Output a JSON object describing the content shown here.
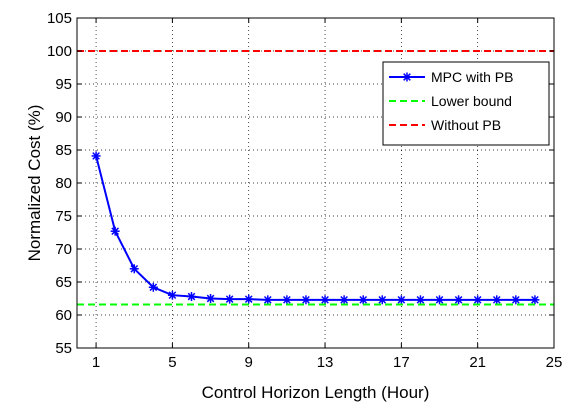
{
  "chart_data": {
    "type": "line",
    "title": "",
    "xlabel": "Control Horizon Length (Hour)",
    "ylabel": "Normalized Cost (%)",
    "xlim": [
      0,
      25
    ],
    "ylim": [
      55,
      105
    ],
    "xticks": [
      1,
      5,
      9,
      13,
      17,
      21,
      25
    ],
    "yticks": [
      55,
      60,
      65,
      70,
      75,
      80,
      85,
      90,
      95,
      100,
      105
    ],
    "grid": true,
    "legend_position": "top-right",
    "series": [
      {
        "name": "MPC with PB",
        "style": "solid line with asterisk markers",
        "color": "#0000ff",
        "x": [
          1,
          2,
          3,
          4,
          5,
          6,
          7,
          8,
          9,
          10,
          11,
          12,
          13,
          14,
          15,
          16,
          17,
          18,
          19,
          20,
          21,
          22,
          23,
          24
        ],
        "values": [
          84.1,
          72.7,
          67.0,
          64.2,
          63.0,
          62.8,
          62.5,
          62.4,
          62.4,
          62.3,
          62.3,
          62.3,
          62.3,
          62.3,
          62.3,
          62.3,
          62.3,
          62.3,
          62.3,
          62.3,
          62.3,
          62.3,
          62.3,
          62.3
        ]
      },
      {
        "name": "Lower bound",
        "style": "dashed line",
        "color": "#00ff00",
        "x": [
          0,
          25
        ],
        "values": [
          61.6,
          61.6
        ]
      },
      {
        "name": "Without PB",
        "style": "dashed line",
        "color": "#ff0000",
        "x": [
          0,
          25
        ],
        "values": [
          100,
          100
        ]
      }
    ]
  }
}
